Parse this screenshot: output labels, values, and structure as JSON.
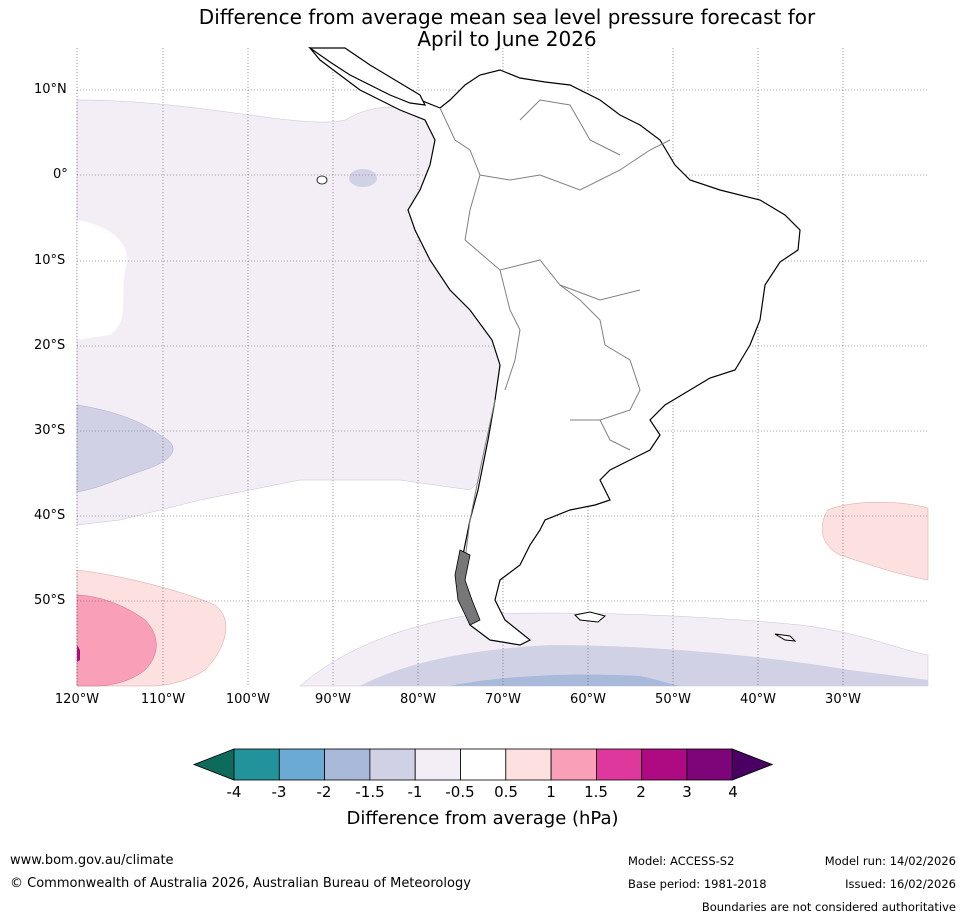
{
  "title": {
    "line1": "Difference from average mean sea level pressure forecast for",
    "line2": "April to June 2026"
  },
  "axes": {
    "lat_labels": [
      "10°N",
      "0°",
      "10°S",
      "20°S",
      "30°S",
      "40°S",
      "50°S"
    ],
    "lon_labels": [
      "120°W",
      "110°W",
      "100°W",
      "90°W",
      "80°W",
      "70°W",
      "60°W",
      "50°W",
      "40°W",
      "30°W"
    ]
  },
  "legend": {
    "ticks": [
      "-4",
      "-3",
      "-2",
      "-1.5",
      "-1",
      "-0.5",
      "0.5",
      "1",
      "1.5",
      "2",
      "3",
      "4"
    ],
    "colors": [
      "#0e6b5c",
      "#22939b",
      "#6aaad3",
      "#a9b9da",
      "#d1d1e6",
      "#f3edf6",
      "#ffffff",
      "#fde0e0",
      "#f9a0b8",
      "#de389c",
      "#ae0b82",
      "#7e0579",
      "#4a0063"
    ],
    "label": "Difference from average (hPa)"
  },
  "footer": {
    "website": "www.bom.gov.au/climate",
    "copyright": "© Commonwealth of Australia 2026, Australian Bureau of Meteorology",
    "model": "Model: ACCESS-S2",
    "model_run": "Model run: 14/02/2026",
    "base_period": "Base period: 1981-2018",
    "issued": "Issued: 16/02/2026",
    "disclaimer": "Boundaries are not considered authoritative"
  },
  "colors": {
    "coast": "#000000",
    "borders": "#808080",
    "grid": "#555555"
  }
}
